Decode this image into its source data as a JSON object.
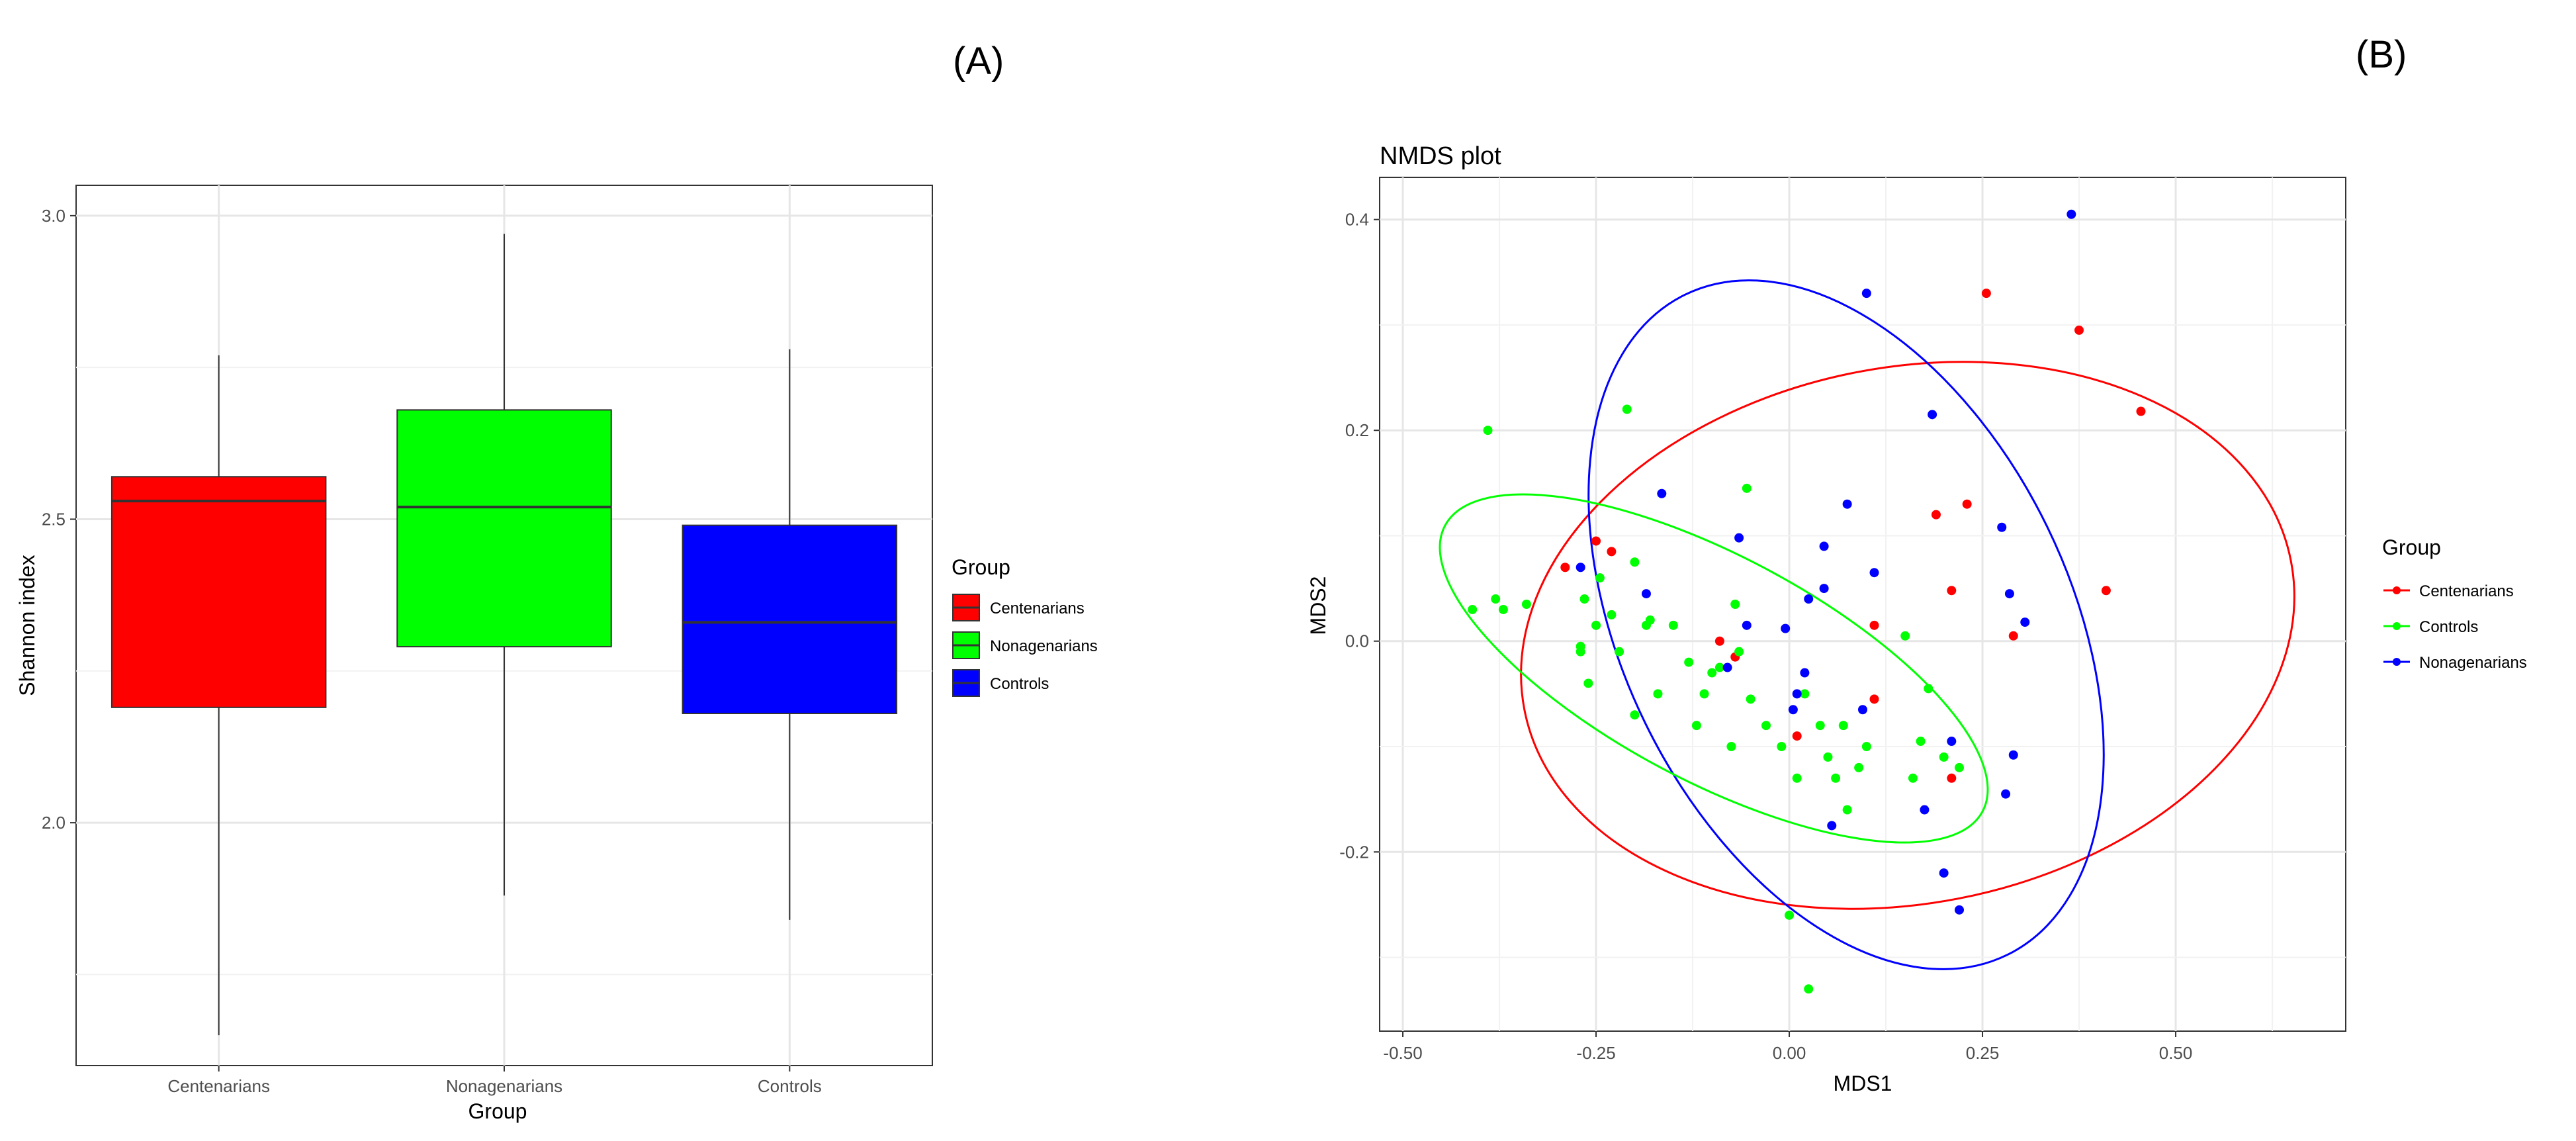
{
  "panel_labels": {
    "a": "(A)",
    "b": "(B)"
  },
  "chart_data": [
    {
      "type": "box",
      "title": "",
      "xlabel": "Group",
      "ylabel": "Shannon index",
      "ylim": [
        1.6,
        3.05
      ],
      "yticks": [
        2.0,
        2.5,
        3.0
      ],
      "ytick_labels": [
        "2.0",
        "2.5",
        "3.0"
      ],
      "grid": true,
      "legend_title": "Group",
      "legend_position": "right",
      "categories": [
        "Centenarians",
        "Nonagenarians",
        "Controls"
      ],
      "legend": [
        {
          "name": "Centenarians",
          "color": "#ff0000"
        },
        {
          "name": "Nonagenarians",
          "color": "#00ff00"
        },
        {
          "name": "Controls",
          "color": "#0000ff"
        }
      ],
      "boxes": [
        {
          "category": "Centenarians",
          "color": "#ff0000",
          "min": 1.65,
          "q1": 2.19,
          "median": 2.53,
          "q3": 2.57,
          "max": 2.77
        },
        {
          "category": "Nonagenarians",
          "color": "#00ff00",
          "min": 1.88,
          "q1": 2.29,
          "median": 2.52,
          "q3": 2.68,
          "max": 2.97
        },
        {
          "category": "Controls",
          "color": "#0000ff",
          "min": 1.84,
          "q1": 2.18,
          "median": 2.33,
          "q3": 2.49,
          "max": 2.78
        }
      ]
    },
    {
      "type": "scatter",
      "title": "NMDS plot",
      "xlabel": "MDS1",
      "ylabel": "MDS2",
      "xlim": [
        -0.53,
        0.72
      ],
      "ylim": [
        -0.37,
        0.44
      ],
      "xticks": [
        -0.5,
        -0.25,
        0.0,
        0.25,
        0.5
      ],
      "xtick_labels": [
        "-0.50",
        "-0.25",
        "0.00",
        "0.25",
        "0.50"
      ],
      "yticks": [
        -0.2,
        0.0,
        0.2,
        0.4
      ],
      "ytick_labels": [
        "-0.2",
        "0.0",
        "0.2",
        "0.4"
      ],
      "grid": true,
      "legend_title": "Group",
      "legend_position": "right",
      "series": [
        {
          "name": "Centenarians",
          "color": "#ff0000",
          "points": [
            [
              -0.29,
              0.07
            ],
            [
              -0.25,
              0.095
            ],
            [
              -0.23,
              0.085
            ],
            [
              -0.09,
              0.0
            ],
            [
              -0.07,
              -0.015
            ],
            [
              0.01,
              -0.09
            ],
            [
              0.11,
              0.015
            ],
            [
              0.11,
              -0.055
            ],
            [
              0.19,
              0.12
            ],
            [
              0.21,
              0.048
            ],
            [
              0.23,
              0.13
            ],
            [
              0.21,
              -0.13
            ],
            [
              0.255,
              0.33
            ],
            [
              0.29,
              0.005
            ],
            [
              0.375,
              0.295
            ],
            [
              0.41,
              0.048
            ],
            [
              0.455,
              0.218
            ]
          ]
        },
        {
          "name": "Controls",
          "color": "#00ff00",
          "points": [
            [
              -0.41,
              0.03
            ],
            [
              -0.39,
              0.2
            ],
            [
              -0.38,
              0.04
            ],
            [
              -0.37,
              0.03
            ],
            [
              -0.34,
              0.035
            ],
            [
              -0.27,
              -0.005
            ],
            [
              -0.27,
              -0.01
            ],
            [
              -0.265,
              0.04
            ],
            [
              -0.26,
              -0.04
            ],
            [
              -0.25,
              0.015
            ],
            [
              -0.245,
              0.06
            ],
            [
              -0.23,
              0.025
            ],
            [
              -0.22,
              -0.01
            ],
            [
              -0.21,
              0.22
            ],
            [
              -0.2,
              0.075
            ],
            [
              -0.2,
              -0.07
            ],
            [
              -0.185,
              0.015
            ],
            [
              -0.18,
              0.02
            ],
            [
              -0.17,
              -0.05
            ],
            [
              -0.15,
              0.015
            ],
            [
              -0.13,
              -0.02
            ],
            [
              -0.12,
              -0.08
            ],
            [
              -0.11,
              -0.05
            ],
            [
              -0.1,
              -0.03
            ],
            [
              -0.09,
              -0.025
            ],
            [
              -0.075,
              -0.1
            ],
            [
              -0.07,
              0.035
            ],
            [
              -0.065,
              -0.01
            ],
            [
              -0.055,
              0.145
            ],
            [
              -0.05,
              -0.055
            ],
            [
              -0.03,
              -0.08
            ],
            [
              -0.01,
              -0.1
            ],
            [
              0.0,
              -0.26
            ],
            [
              0.01,
              -0.13
            ],
            [
              0.02,
              -0.05
            ],
            [
              0.025,
              -0.33
            ],
            [
              0.04,
              -0.08
            ],
            [
              0.05,
              -0.11
            ],
            [
              0.06,
              -0.13
            ],
            [
              0.07,
              -0.08
            ],
            [
              0.075,
              -0.16
            ],
            [
              0.09,
              -0.12
            ],
            [
              0.1,
              -0.1
            ],
            [
              0.15,
              0.005
            ],
            [
              0.16,
              -0.13
            ],
            [
              0.17,
              -0.095
            ],
            [
              0.18,
              -0.045
            ],
            [
              0.2,
              -0.11
            ],
            [
              0.22,
              -0.12
            ]
          ]
        },
        {
          "name": "Nonagenarians",
          "color": "#0000ff",
          "points": [
            [
              -0.27,
              0.07
            ],
            [
              -0.185,
              0.045
            ],
            [
              -0.165,
              0.14
            ],
            [
              -0.08,
              -0.025
            ],
            [
              -0.065,
              0.098
            ],
            [
              -0.055,
              0.015
            ],
            [
              -0.005,
              0.012
            ],
            [
              0.005,
              -0.065
            ],
            [
              0.01,
              -0.05
            ],
            [
              0.02,
              -0.03
            ],
            [
              0.025,
              0.04
            ],
            [
              0.045,
              0.09
            ],
            [
              0.045,
              0.05
            ],
            [
              0.055,
              -0.175
            ],
            [
              0.075,
              0.13
            ],
            [
              0.095,
              -0.065
            ],
            [
              0.1,
              0.33
            ],
            [
              0.11,
              0.065
            ],
            [
              0.175,
              -0.16
            ],
            [
              0.185,
              0.215
            ],
            [
              0.2,
              -0.22
            ],
            [
              0.21,
              -0.095
            ],
            [
              0.22,
              -0.255
            ],
            [
              0.275,
              0.108
            ],
            [
              0.28,
              -0.145
            ],
            [
              0.285,
              0.045
            ],
            [
              0.29,
              -0.108
            ],
            [
              0.305,
              0.018
            ],
            [
              0.365,
              0.405
            ]
          ]
        }
      ]
    }
  ]
}
